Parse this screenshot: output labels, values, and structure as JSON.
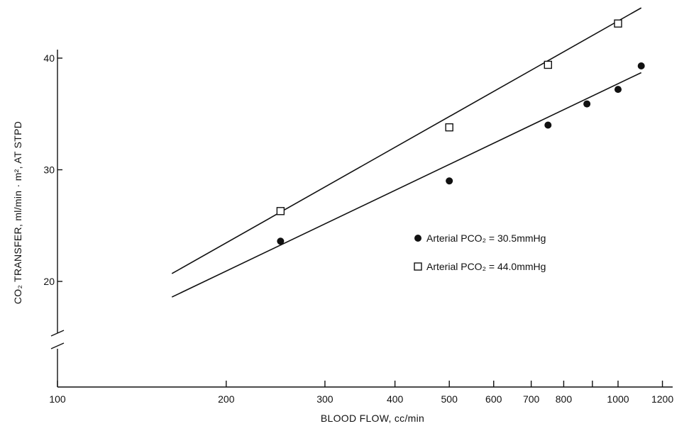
{
  "chart_data": {
    "type": "scatter",
    "title": "",
    "xlabel": "BLOOD FLOW,  cc/min",
    "ylabel": "CO₂ TRANSFER, ml/min · m², AT STPD",
    "x_scale": "log",
    "xlim": [
      100,
      1200
    ],
    "ylim": [
      15,
      43
    ],
    "y_axis_break": true,
    "grid": false,
    "legend_position": "right",
    "x_ticks": [
      {
        "value": 100,
        "label": "100"
      },
      {
        "value": 200,
        "label": "200"
      },
      {
        "value": 300,
        "label": "300"
      },
      {
        "value": 400,
        "label": "400"
      },
      {
        "value": 500,
        "label": "500"
      },
      {
        "value": 600,
        "label": "600"
      },
      {
        "value": 700,
        "label": "700"
      },
      {
        "value": 800,
        "label": "800"
      },
      {
        "value": 900,
        "label": ""
      },
      {
        "value": 1000,
        "label": "1000"
      },
      {
        "value": 1200,
        "label": "1200"
      }
    ],
    "y_ticks": [
      {
        "value": 20,
        "label": "20"
      },
      {
        "value": 30,
        "label": "30"
      },
      {
        "value": 40,
        "label": "40"
      }
    ],
    "series": [
      {
        "name": "Arterial PCO₂ = 30.5mmHg",
        "marker": "filled-circle",
        "color": "#111111",
        "points": [
          {
            "x": 250,
            "y": 23.6
          },
          {
            "x": 500,
            "y": 29.0
          },
          {
            "x": 750,
            "y": 34.0
          },
          {
            "x": 880,
            "y": 35.9
          },
          {
            "x": 1000,
            "y": 37.2
          },
          {
            "x": 1100,
            "y": 39.3
          }
        ],
        "fit_line": {
          "x": [
            160,
            1100
          ],
          "y": [
            18.6,
            38.7
          ]
        }
      },
      {
        "name": "Arterial PCO₂ = 44.0mmHg",
        "marker": "open-square",
        "color": "#111111",
        "points": [
          {
            "x": 250,
            "y": 26.3
          },
          {
            "x": 500,
            "y": 33.8
          },
          {
            "x": 750,
            "y": 39.4
          },
          {
            "x": 1000,
            "y": 43.1
          }
        ],
        "fit_line": {
          "x": [
            160,
            1100
          ],
          "y": [
            20.7,
            44.5
          ]
        }
      }
    ]
  }
}
